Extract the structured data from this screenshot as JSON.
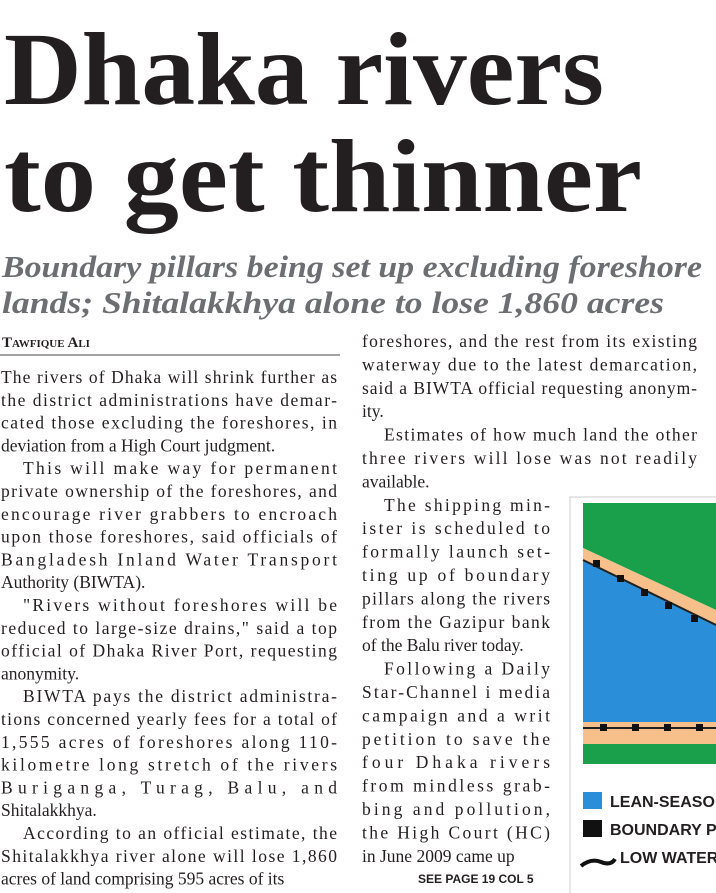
{
  "headline": {
    "lines": [
      "Dhaka rivers",
      "to get thinner"
    ]
  },
  "subheadline": {
    "lines": [
      "Boundary pillars being set up excluding foreshore",
      "lands; Shitalakkhya alone to lose 1,860 acres"
    ]
  },
  "byline": "Tawfique Ali",
  "columns": [
    {
      "paragraphs": [
        [
          "The rivers of Dhaka will shrink further as",
          "the district administrations have demar-",
          "cated those excluding the foreshores, in",
          "deviation from a High Court judgment."
        ],
        [
          "This will make way for permanent",
          "private ownership of the foreshores, and",
          "encourage river grabbers to encroach",
          "upon those foreshores, said officials of",
          "Bangladesh Inland Water Transport",
          "Authority (BIWTA)."
        ],
        [
          "\"Rivers without foreshores will be",
          "reduced to large-size drains,\" said a top",
          "official of Dhaka River Port, requesting",
          "anonymity."
        ],
        [
          "BIWTA pays the district administra-",
          "tions concerned yearly fees for a total of",
          "1,555 acres of foreshores along 110-",
          "kilometre long stretch of the rivers",
          "Buriganga, Turag, Balu, and",
          "Shitalakkhya."
        ],
        [
          "According to an official estimate, the",
          "Shitalakkhya river alone will lose 1,860",
          "acres of land comprising 595 acres of its"
        ]
      ]
    },
    {
      "paragraphs": [
        [
          "foreshores, and the rest from its existing",
          "waterway due to the latest demarcation,",
          "said a BIWTA official requesting anonym-",
          "ity."
        ],
        [
          "Estimates of how much land the other",
          "three rivers will lose was not readily",
          "available."
        ],
        [
          "The shipping min-",
          "ister is scheduled to",
          "formally launch set-",
          "ting up of boundary",
          "pillars along the rivers",
          "from the Gazipur bank",
          "of the Balu river today."
        ],
        [
          "Following a Daily",
          "Star-Channel i media",
          "campaign and a writ",
          "petition to save the",
          "four Dhaka rivers",
          "from mindless grab-",
          "bing and pollution,",
          "the High Court (HC)",
          "in June 2009 came up"
        ]
      ]
    }
  ],
  "jump_line": "SEE PAGE 19 COL 5",
  "map_legend": [
    "LEAN-SEASO",
    "BOUNDARY P",
    "LOW WATER"
  ]
}
